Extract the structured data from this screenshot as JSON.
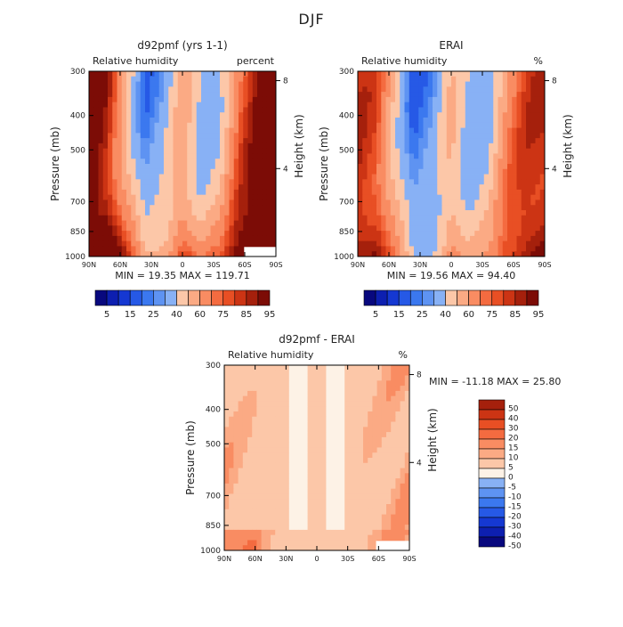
{
  "figure": {
    "title": "DJF"
  },
  "chart_data": [
    {
      "type": "heatmap",
      "id": "model",
      "title": "d92pmf (yrs 1-1)",
      "subtitle_left": "Relative humidity",
      "subtitle_right": "percent",
      "ylabel": "Pressure (mb)",
      "ylabel_right": "Height (km)",
      "x_ticks": [
        "90N",
        "60N",
        "30N",
        "0",
        "30S",
        "60S",
        "90S"
      ],
      "y_ticks": [
        "300",
        "400",
        "500",
        "700",
        "850",
        "1000"
      ],
      "y_tick_values": [
        300,
        400,
        500,
        700,
        850,
        1000
      ],
      "height_ticks": [
        "8",
        "4"
      ],
      "height_tick_values": [
        8,
        4
      ],
      "ylim": [
        300,
        1000
      ],
      "xlim": [
        90,
        -90
      ],
      "stats": "MIN =   19.35   MAX =  119.71",
      "colorbar_labels": [
        "5",
        "15",
        "25",
        "40",
        "60",
        "75",
        "85",
        "95"
      ],
      "colorbar_levels": [
        5,
        10,
        15,
        20,
        25,
        30,
        40,
        50,
        60,
        70,
        75,
        80,
        85,
        90,
        95
      ],
      "mean_profile": [
        92,
        85,
        55,
        25,
        35,
        60,
        40,
        45,
        75,
        90,
        95
      ],
      "surface_boost": 25
    },
    {
      "type": "heatmap",
      "id": "obs",
      "title": "ERAI",
      "subtitle_left": "Relative humidity",
      "subtitle_right": "%",
      "ylabel": "Pressure (mb)",
      "ylabel_right": "Height (km)",
      "x_ticks": [
        "90N",
        "60N",
        "30N",
        "0",
        "30S",
        "60S",
        "90S"
      ],
      "y_ticks": [
        "300",
        "400",
        "500",
        "700",
        "850",
        "1000"
      ],
      "y_tick_values": [
        300,
        400,
        500,
        700,
        850,
        1000
      ],
      "height_ticks": [
        "8",
        "4"
      ],
      "height_tick_values": [
        8,
        4
      ],
      "ylim": [
        300,
        1000
      ],
      "xlim": [
        90,
        -90
      ],
      "stats": "MIN =   19.56   MAX =   94.40",
      "colorbar_labels": [
        "5",
        "15",
        "25",
        "40",
        "60",
        "75",
        "85",
        "95"
      ],
      "colorbar_levels": [
        5,
        10,
        15,
        20,
        25,
        30,
        40,
        50,
        60,
        70,
        75,
        80,
        85,
        90,
        95
      ],
      "mean_profile": [
        82,
        78,
        50,
        22,
        30,
        55,
        38,
        42,
        68,
        80,
        84
      ],
      "surface_boost": 14
    },
    {
      "type": "heatmap",
      "id": "diff",
      "title": "d92pmf - ERAI",
      "subtitle_left": "Relative humidity",
      "subtitle_right": "%",
      "ylabel": "Pressure (mb)",
      "ylabel_right": "Height (km)",
      "x_ticks": [
        "90N",
        "60N",
        "30N",
        "0",
        "30S",
        "60S",
        "90S"
      ],
      "y_ticks": [
        "300",
        "400",
        "500",
        "700",
        "850",
        "1000"
      ],
      "y_tick_values": [
        300,
        400,
        500,
        700,
        850,
        1000
      ],
      "height_ticks": [
        "8",
        "4"
      ],
      "height_tick_values": [
        8,
        4
      ],
      "ylim": [
        300,
        1000
      ],
      "xlim": [
        90,
        -90
      ],
      "stats": "MIN =  -11.18   MAX =   25.80",
      "colorbar_labels": [
        "50",
        "40",
        "30",
        "20",
        "15",
        "10",
        "5",
        "0",
        "-5",
        "-10",
        "-15",
        "-20",
        "-30",
        "-40",
        "-50"
      ],
      "colorbar_levels": [
        -50,
        -40,
        -30,
        -20,
        -15,
        -10,
        -5,
        0,
        5,
        10,
        15,
        20,
        30,
        40,
        50
      ],
      "mean_profile": [
        10,
        7,
        3,
        2,
        -3,
        2,
        -2,
        3,
        6,
        9,
        12
      ],
      "surface_boost": 10
    }
  ],
  "colors": {
    "blue_scale": [
      "#08087e",
      "#0d1fb0",
      "#1538d2",
      "#2659e6",
      "#3b78ef",
      "#5e93f2",
      "#88b1f5",
      "#b3cdf8",
      "#d9e6fb"
    ],
    "red_scale": [
      "#fde3d0",
      "#fcc7a8",
      "#fbaa84",
      "#f98c62",
      "#f46b40",
      "#e84f24",
      "#cc3414",
      "#a5200c",
      "#7c0c06"
    ],
    "neutral": "#fdf2e6",
    "missing": "#ffffff"
  }
}
